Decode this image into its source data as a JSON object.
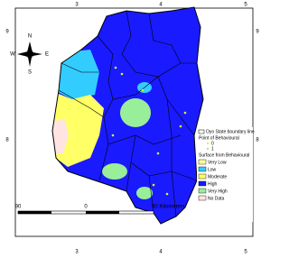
{
  "axes": {
    "top": [
      "3",
      "4",
      "5"
    ],
    "bottom": [
      "3",
      "4",
      "5"
    ],
    "left": [
      "9",
      "8"
    ],
    "right": [
      "9",
      "8"
    ]
  },
  "compass": {
    "n": "N",
    "s": "S",
    "e": "E",
    "w": "W"
  },
  "legend": {
    "boundary": "Oyo State boundary line",
    "points_title": "Point of Behavioural",
    "points": [
      "0",
      "1"
    ],
    "surface_title": "Surface from Behavioural",
    "classes": [
      "Very Low",
      "Low",
      "Moderate",
      "High",
      "Very High",
      "No Data"
    ]
  },
  "scale": {
    "left": "90",
    "mid": "0",
    "right": "90 Kilometers"
  }
}
